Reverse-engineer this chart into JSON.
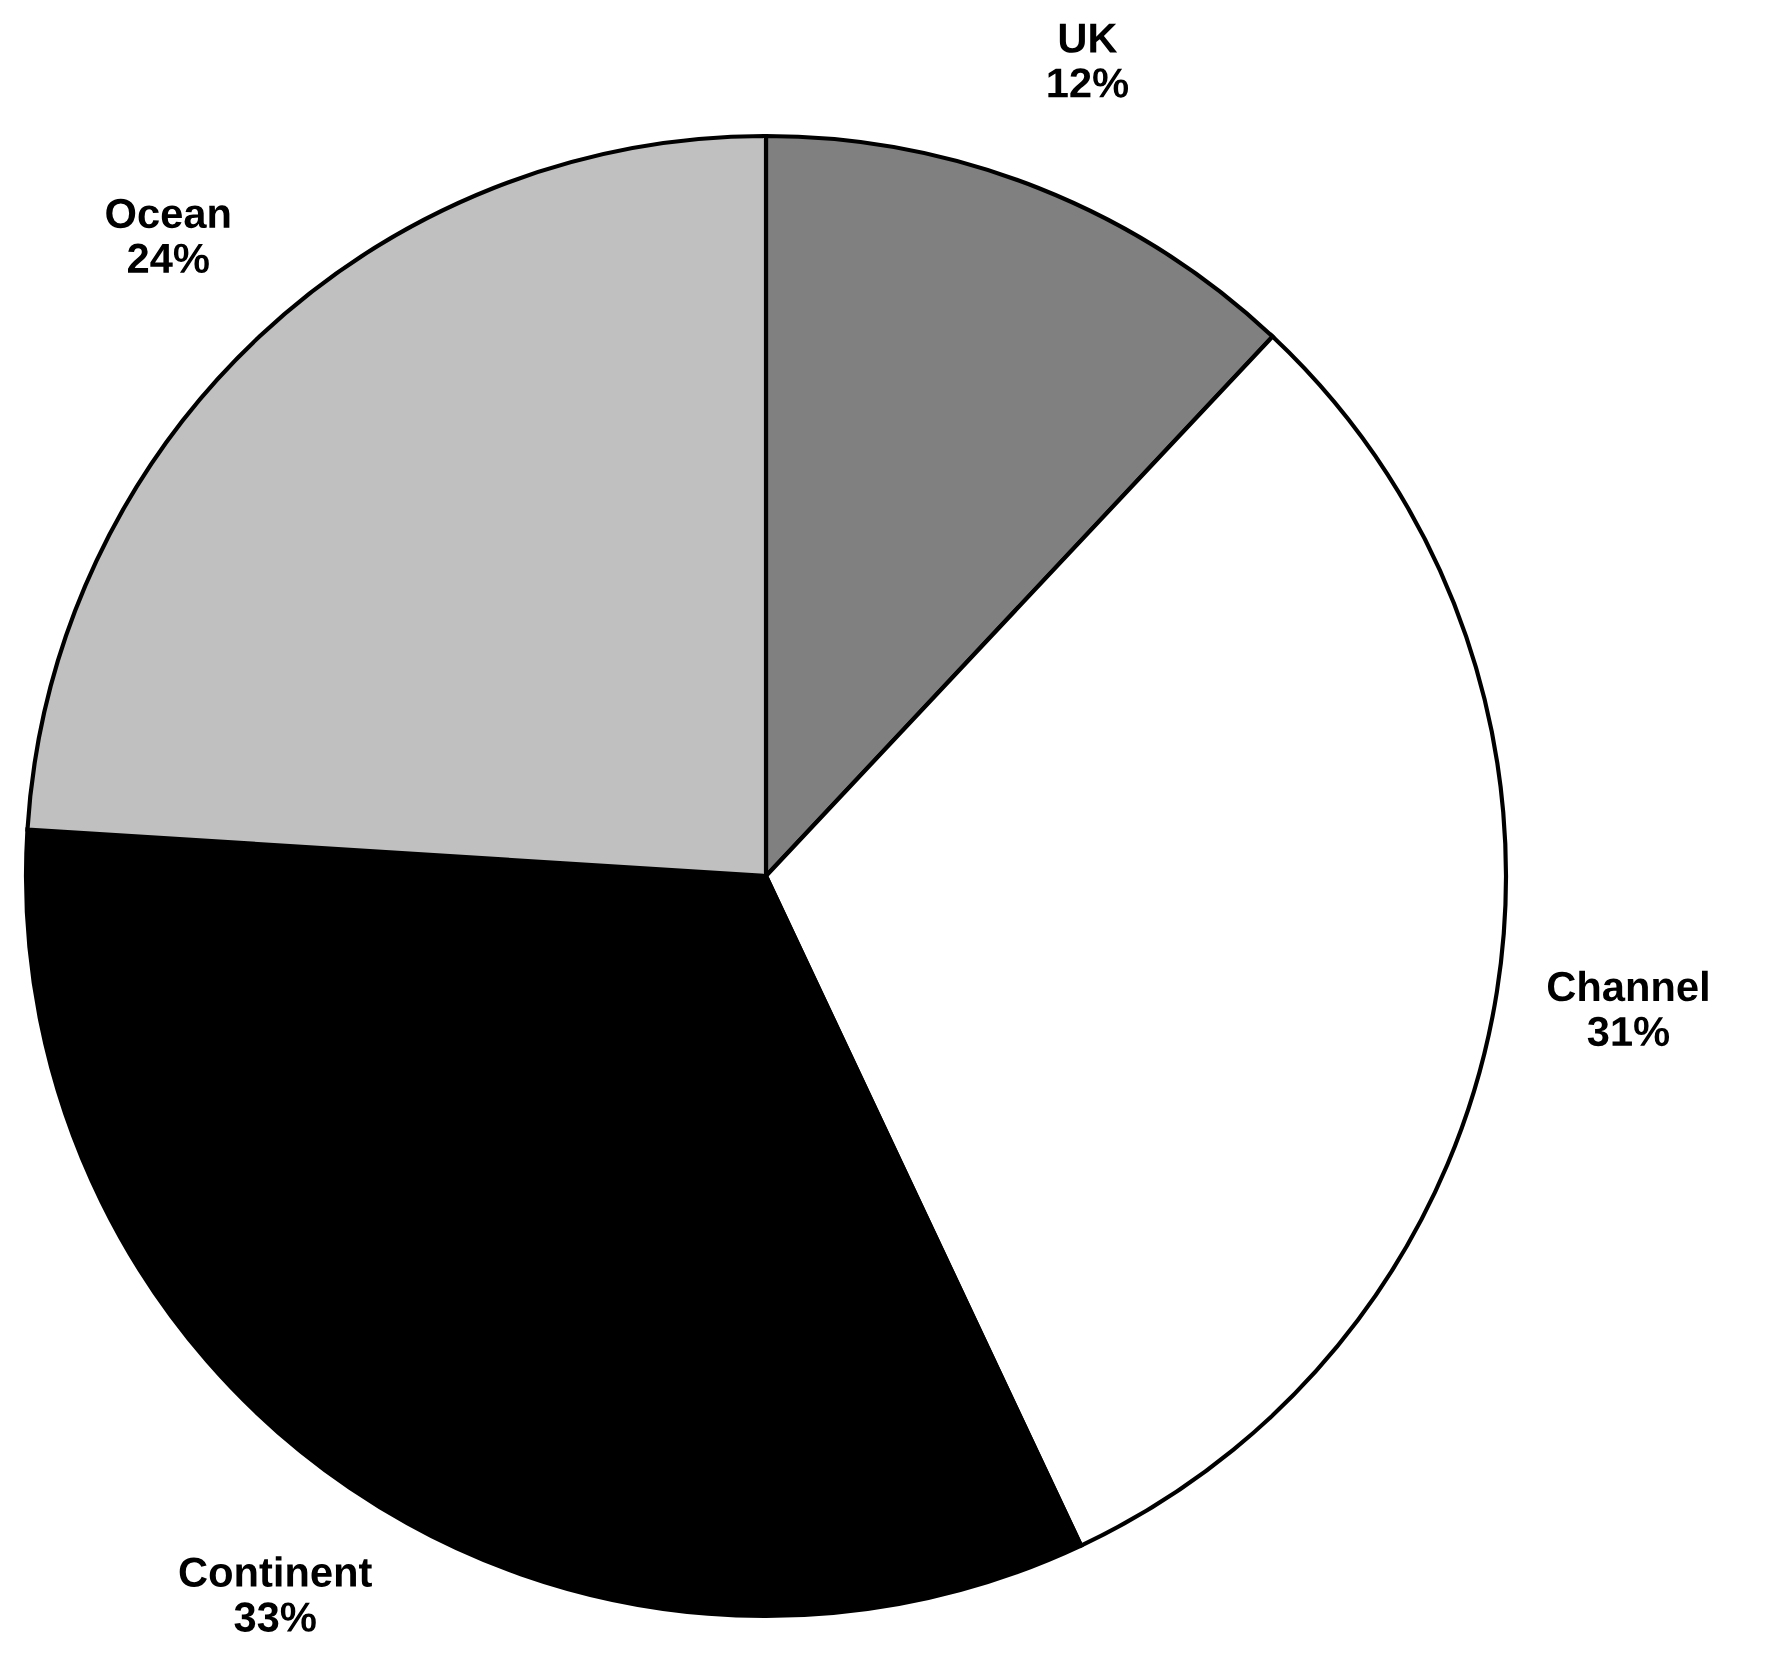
{
  "chart_data": {
    "type": "pie",
    "categories": [
      "UK",
      "Channel",
      "Continent",
      "Ocean"
    ],
    "values": [
      12,
      31,
      33,
      24
    ],
    "value_labels": [
      "12%",
      "31%",
      "33%",
      "24%"
    ],
    "colors": [
      "#808080",
      "#ffffff",
      "#000000",
      "#c0c0c0"
    ]
  }
}
